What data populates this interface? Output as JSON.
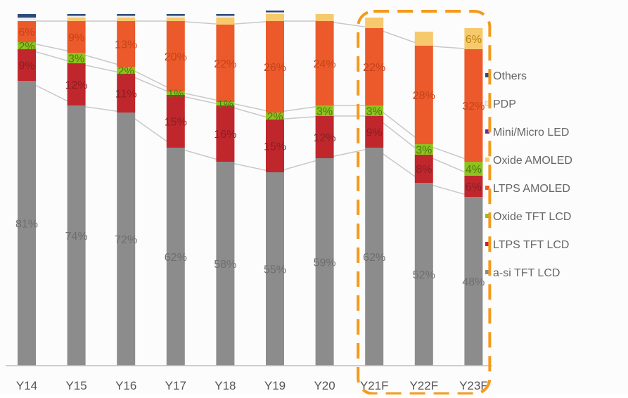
{
  "chart_data": {
    "type": "bar",
    "stacked": true,
    "categories": [
      "Y14",
      "Y15",
      "Y16",
      "Y17",
      "Y18",
      "Y19",
      "Y20",
      "Y21F",
      "Y22F",
      "Y23F"
    ],
    "series": [
      {
        "name": "a-si TFT LCD",
        "color": "#8c8c8c",
        "values": [
          81,
          74,
          72,
          62,
          58,
          55,
          59,
          62,
          52,
          48
        ]
      },
      {
        "name": "LTPS TFT LCD",
        "color": "#c0272d",
        "values": [
          9,
          12,
          11,
          15,
          16,
          15,
          12,
          9,
          8,
          6
        ]
      },
      {
        "name": "Oxide TFT LCD",
        "color": "#8fc21f",
        "values": [
          2,
          3,
          2,
          1,
          1,
          2,
          3,
          3,
          3,
          4
        ]
      },
      {
        "name": "LTPS AMOLED",
        "color": "#ec5a2b",
        "values": [
          6,
          9,
          13,
          20,
          22,
          26,
          24,
          22,
          28,
          32
        ]
      },
      {
        "name": "Oxide AMOLED",
        "color": "#f6c96d",
        "values": [
          0,
          1,
          1,
          1,
          2,
          2,
          2,
          3,
          4,
          6
        ]
      },
      {
        "name": "Mini/Micro LED",
        "color": "#6a2a9a",
        "values": [
          0,
          0,
          0,
          0,
          0,
          0,
          0,
          0,
          0,
          0
        ]
      },
      {
        "name": "PDP",
        "color": "#eeeeee",
        "values": [
          1,
          0.5,
          0.5,
          0.5,
          0.5,
          0.5,
          0,
          0,
          0,
          0
        ]
      },
      {
        "name": "Others",
        "color": "#2b4a7a",
        "values": [
          1,
          0.5,
          0.5,
          0.5,
          0.5,
          0.5,
          0,
          0,
          0,
          0
        ]
      }
    ],
    "data_labels": [
      {
        "series": "a-si TFT LCD",
        "values": [
          "81%",
          "74%",
          "72%",
          "62%",
          "58%",
          "55%",
          "59%",
          "62%",
          "52%",
          "48%"
        ]
      },
      {
        "series": "LTPS TFT LCD",
        "values": [
          "9%",
          "12%",
          "11%",
          "15%",
          "16%",
          "15%",
          "12%",
          "9%",
          "8%",
          "6%"
        ]
      },
      {
        "series": "Oxide TFT LCD",
        "values": [
          "2%",
          "3%",
          "2%",
          "1%",
          "1%",
          "2%",
          "3%",
          "3%",
          "3%",
          "4%"
        ]
      },
      {
        "series": "LTPS AMOLED",
        "values": [
          "6%",
          "9%",
          "13%",
          "20%",
          "22%",
          "26%",
          "24%",
          "22%",
          "28%",
          "32%"
        ]
      },
      {
        "series": "Oxide AMOLED",
        "values": [
          "",
          "",
          "",
          "",
          "",
          "",
          "",
          "",
          "",
          "6%"
        ]
      }
    ],
    "legend": {
      "position": "right",
      "entries": [
        "Others",
        "PDP",
        "Mini/Micro LED",
        "Oxide AMOLED",
        "LTPS AMOLED",
        "Oxide TFT LCD",
        "LTPS TFT LCD",
        "a-si TFT LCD"
      ]
    },
    "ylim": [
      0,
      100
    ],
    "grid": false,
    "highlight": {
      "categories": [
        "Y21F",
        "Y22F",
        "Y23F"
      ],
      "color": "#f59a1c",
      "style": "dashed"
    },
    "connector_lines": true
  }
}
